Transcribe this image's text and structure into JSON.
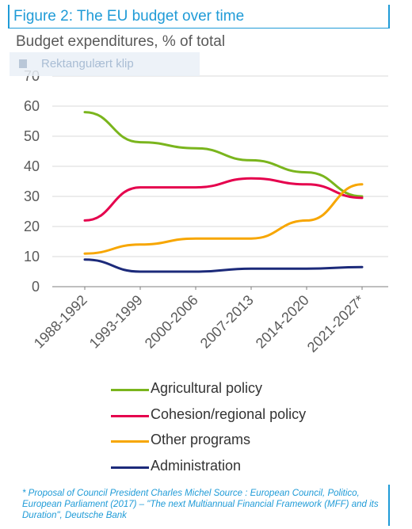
{
  "figure": {
    "title": "Figure 2: The EU budget over time",
    "subtitle": "Budget expenditures, % of total"
  },
  "overlay": {
    "label": "Rektangulært klip",
    "icon": "snip-icon"
  },
  "chart_data": {
    "type": "line",
    "categories": [
      "1988-1992",
      "1993-1999",
      "2000-2006",
      "2007-2013",
      "2014-2020",
      "2021-2027*"
    ],
    "ylim": [
      0,
      70
    ],
    "yticks": [
      0,
      10,
      20,
      30,
      40,
      50,
      60,
      70
    ],
    "grid": true,
    "legend_position": "bottom",
    "series": [
      {
        "name": "Agricultural policy",
        "color": "#7ab51d",
        "values": [
          58,
          48,
          46,
          42,
          38,
          30
        ]
      },
      {
        "name": "Cohesion/regional policy",
        "color": "#e5004d",
        "values": [
          22,
          33,
          33,
          36,
          34,
          29.5
        ]
      },
      {
        "name": "Other programs",
        "color": "#f7a600",
        "values": [
          11,
          14,
          16,
          16,
          22,
          34
        ]
      },
      {
        "name": "Administration",
        "color": "#1c2a7a",
        "values": [
          9,
          5,
          5,
          6,
          6,
          6.5
        ]
      }
    ]
  },
  "footnote": "* Proposal of Council President Charles Michel Source : European Council, Politico, European Parliament (2017) – \"The next Multiannual Financial Framework (MFF) and its Duration\", Deutsche Bank"
}
